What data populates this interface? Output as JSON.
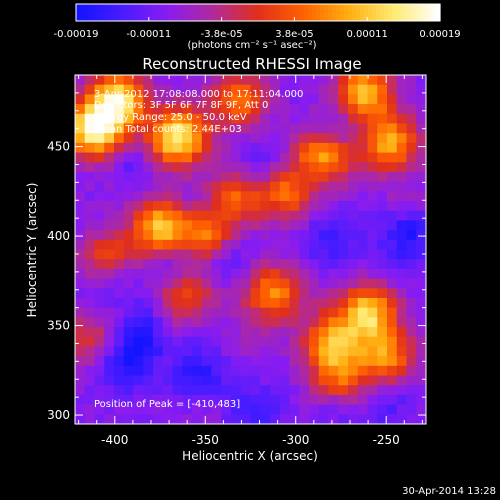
{
  "chart_data": {
    "type": "heatmap",
    "title": "Reconstructed RHESSI Image",
    "xlabel": "Heliocentric X (arcsec)",
    "ylabel": "Heliocentric Y (arcsec)",
    "xlim": [
      -422,
      -228
    ],
    "ylim": [
      295,
      490
    ],
    "x_ticks": [
      -400,
      -350,
      -300,
      -250
    ],
    "y_ticks": [
      300,
      350,
      400,
      450
    ],
    "colorbar": {
      "tick_labels": [
        "-0.00019",
        "-0.00011",
        "-3.8e-05",
        "3.8e-05",
        "0.00011",
        "0.00019"
      ],
      "range": [
        -0.00019,
        0.00019
      ],
      "unit_label": "(photons cm⁻² s⁻¹ asec⁻²)",
      "colors": [
        "#1414ff",
        "#4a1cff",
        "#8a1cf0",
        "#b02a9a",
        "#e0301c",
        "#ff6000",
        "#ffae10",
        "#ffea70",
        "#ffffff"
      ]
    },
    "annotations": [
      "3-Apr-2012 17:08:08.000 to 17:11:04.000",
      "Detectors: 3F 5F 6F 7F 8F 9F, Att 0",
      "Energy Range: 25.0 - 50.0 keV",
      "Clean    Total counts: 2.44E+03"
    ],
    "peak_label": "Position of Peak = [-410,483]",
    "hotspots": [
      {
        "x": -365,
        "y": 455,
        "v": 1.0
      },
      {
        "x": -412,
        "y": 460,
        "v": 0.95
      },
      {
        "x": -398,
        "y": 476,
        "v": 0.85
      },
      {
        "x": -332,
        "y": 476,
        "v": 0.55
      },
      {
        "x": -262,
        "y": 480,
        "v": 0.75
      },
      {
        "x": -248,
        "y": 452,
        "v": 0.7
      },
      {
        "x": -285,
        "y": 445,
        "v": 0.7
      },
      {
        "x": -305,
        "y": 425,
        "v": 0.55
      },
      {
        "x": -332,
        "y": 422,
        "v": 0.5
      },
      {
        "x": -375,
        "y": 405,
        "v": 0.75
      },
      {
        "x": -350,
        "y": 398,
        "v": 0.65
      },
      {
        "x": -403,
        "y": 386,
        "v": 0.55
      },
      {
        "x": -360,
        "y": 370,
        "v": 0.55
      },
      {
        "x": -312,
        "y": 368,
        "v": 0.6
      },
      {
        "x": -260,
        "y": 357,
        "v": 0.8
      },
      {
        "x": -280,
        "y": 340,
        "v": 0.65
      },
      {
        "x": -250,
        "y": 332,
        "v": 0.6
      },
      {
        "x": -275,
        "y": 320,
        "v": 0.45
      },
      {
        "x": -412,
        "y": 343,
        "v": 0.4
      }
    ],
    "coldspots": [
      {
        "x": -362,
        "y": 384,
        "v": 0.7
      },
      {
        "x": -340,
        "y": 387,
        "v": 0.6
      },
      {
        "x": -380,
        "y": 346,
        "v": 0.8
      },
      {
        "x": -395,
        "y": 330,
        "v": 0.75
      },
      {
        "x": -355,
        "y": 322,
        "v": 0.6
      },
      {
        "x": -405,
        "y": 375,
        "v": 0.5
      },
      {
        "x": -318,
        "y": 436,
        "v": 0.45
      },
      {
        "x": -282,
        "y": 462,
        "v": 0.55
      },
      {
        "x": -280,
        "y": 398,
        "v": 0.5
      },
      {
        "x": -240,
        "y": 395,
        "v": 0.45
      },
      {
        "x": -252,
        "y": 308,
        "v": 0.45
      },
      {
        "x": -330,
        "y": 305,
        "v": 0.4
      }
    ]
  },
  "footer_timestamp": "30-Apr-2014 13:28"
}
